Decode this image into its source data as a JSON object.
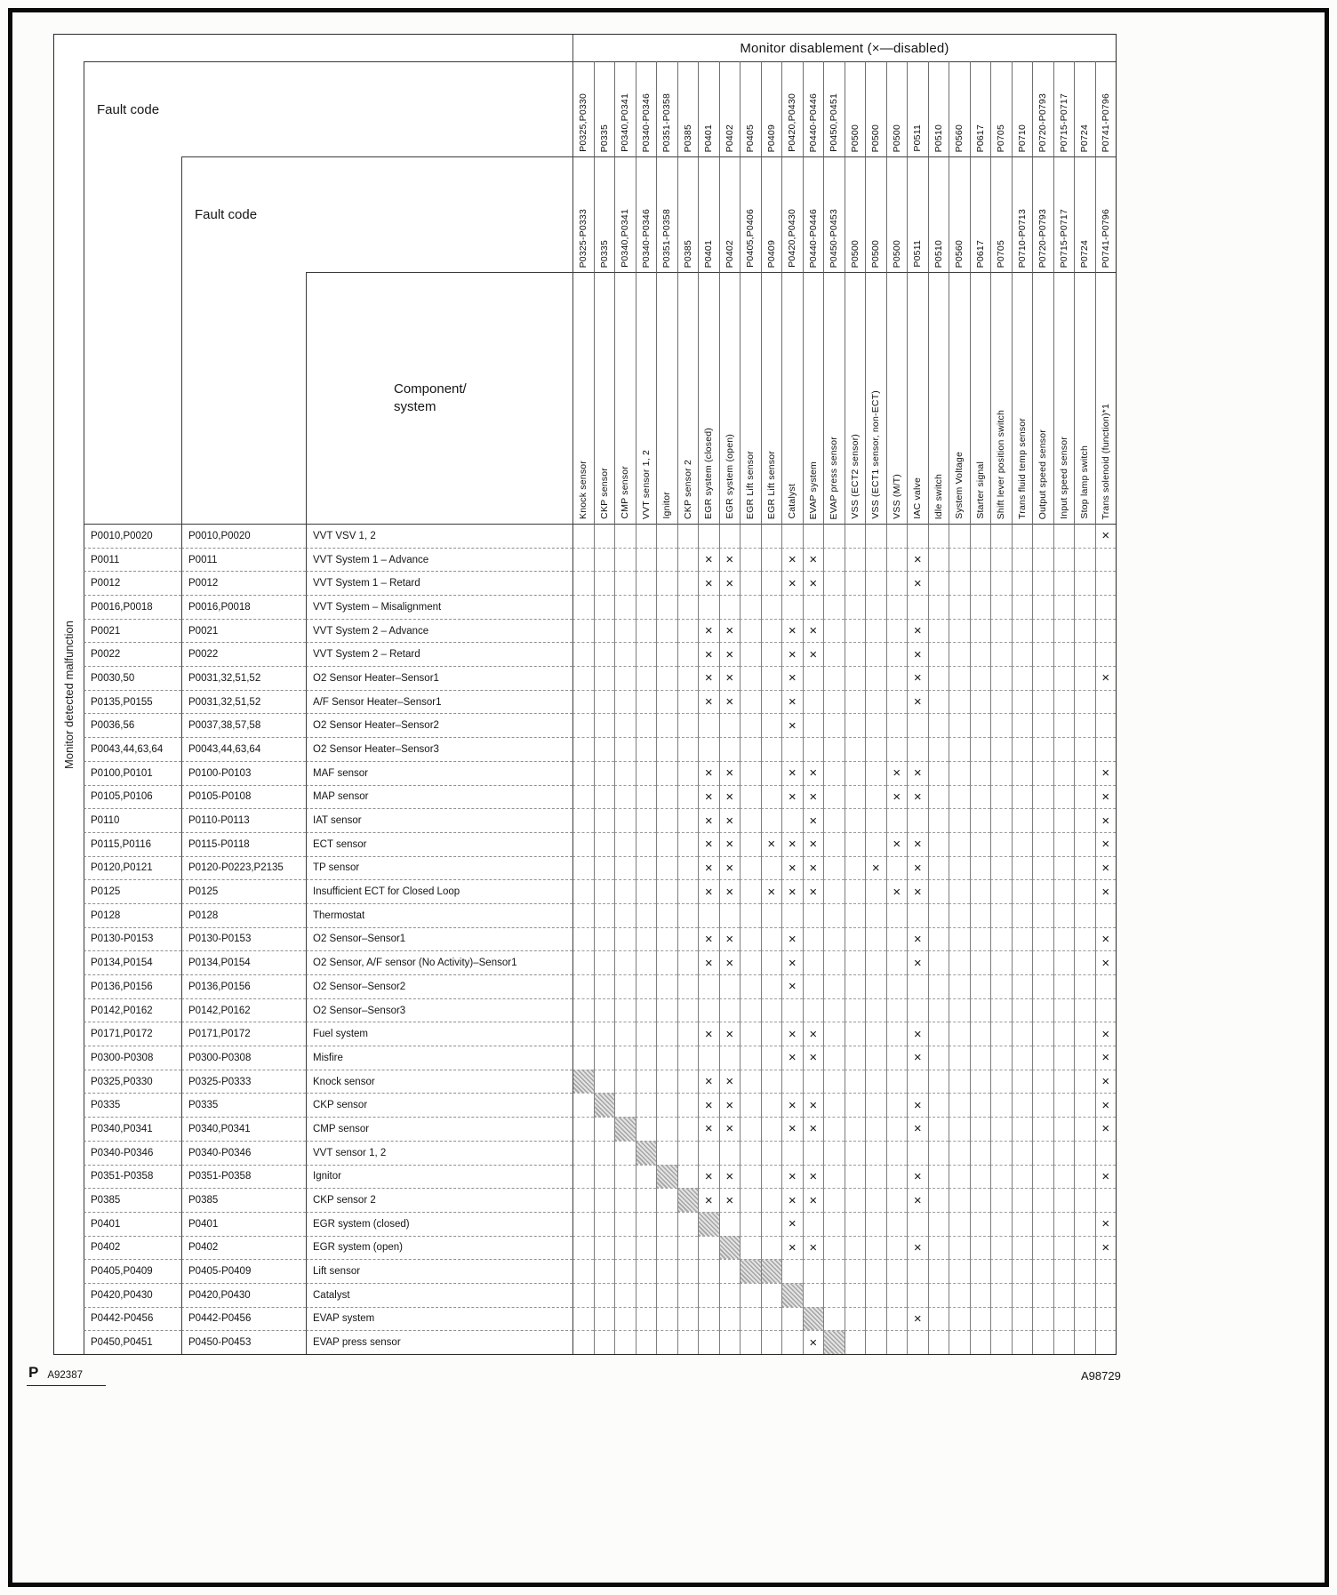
{
  "page": {
    "corner_label": "P",
    "figure_left": "A92387",
    "figure_right": "A98729"
  },
  "header": {
    "title": "Monitor disablement (×—disabled)",
    "fault_code_1": "Fault code",
    "fault_code_2": "Fault code",
    "component_system": "Component/\nsystem",
    "left_label": "Monitor detected malfunction"
  },
  "glyphs": {
    "disabled_mark": "×"
  },
  "columns": [
    {
      "code1": "P0325,P0330",
      "code2": "P0325-P0333",
      "component": "Knock sensor"
    },
    {
      "code1": "P0335",
      "code2": "P0335",
      "component": "CKP sensor"
    },
    {
      "code1": "P0340,P0341",
      "code2": "P0340,P0341",
      "component": "CMP sensor"
    },
    {
      "code1": "P0340-P0346",
      "code2": "P0340-P0346",
      "component": "VVT sensor 1, 2"
    },
    {
      "code1": "P0351-P0358",
      "code2": "P0351-P0358",
      "component": "Ignitor"
    },
    {
      "code1": "P0385",
      "code2": "P0385",
      "component": "CKP sensor 2"
    },
    {
      "code1": "P0401",
      "code2": "P0401",
      "component": "EGR system (closed)"
    },
    {
      "code1": "P0402",
      "code2": "P0402",
      "component": "EGR system (open)"
    },
    {
      "code1": "P0405",
      "code2": "P0405,P0406",
      "component": "EGR Lift sensor"
    },
    {
      "code1": "P0409",
      "code2": "P0409",
      "component": "EGR Lift sensor"
    },
    {
      "code1": "P0420,P0430",
      "code2": "P0420,P0430",
      "component": "Catalyst"
    },
    {
      "code1": "P0440-P0446",
      "code2": "P0440-P0446",
      "component": "EVAP system"
    },
    {
      "code1": "P0450,P0451",
      "code2": "P0450-P0453",
      "component": "EVAP press sensor"
    },
    {
      "code1": "P0500",
      "code2": "P0500",
      "component": "VSS (ECT2 sensor)"
    },
    {
      "code1": "P0500",
      "code2": "P0500",
      "component": "VSS (ECT1 sensor, non-ECT)"
    },
    {
      "code1": "P0500",
      "code2": "P0500",
      "component": "VSS (M/T)"
    },
    {
      "code1": "P0511",
      "code2": "P0511",
      "component": "IAC valve"
    },
    {
      "code1": "P0510",
      "code2": "P0510",
      "component": "Idle switch"
    },
    {
      "code1": "P0560",
      "code2": "P0560",
      "component": "System Voltage"
    },
    {
      "code1": "P0617",
      "code2": "P0617",
      "component": "Starter signal"
    },
    {
      "code1": "P0705",
      "code2": "P0705",
      "component": "Shift lever position switch"
    },
    {
      "code1": "P0710",
      "code2": "P0710-P0713",
      "component": "Trans fluid temp sensor"
    },
    {
      "code1": "P0720-P0793",
      "code2": "P0720-P0793",
      "component": "Output speed sensor"
    },
    {
      "code1": "P0715-P0717",
      "code2": "P0715-P0717",
      "component": "Input speed sensor"
    },
    {
      "code1": "P0724",
      "code2": "P0724",
      "component": "Stop lamp switch"
    },
    {
      "code1": "P0741-P0796",
      "code2": "P0741-P0796",
      "component": "Trans solenoid (function)*1"
    }
  ],
  "rows": [
    {
      "code1": "P0010,P0020",
      "code2": "P0010,P0020",
      "component": "VVT VSV 1, 2",
      "x": [
        26
      ],
      "shaded": []
    },
    {
      "code1": "P0011",
      "code2": "P0011",
      "component": "VVT System 1 – Advance",
      "x": [
        7,
        8,
        11,
        12,
        17
      ],
      "shaded": []
    },
    {
      "code1": "P0012",
      "code2": "P0012",
      "component": "VVT System 1 – Retard",
      "x": [
        7,
        8,
        11,
        12,
        17
      ],
      "shaded": []
    },
    {
      "code1": "P0016,P0018",
      "code2": "P0016,P0018",
      "component": "VVT System – Misalignment",
      "x": [],
      "shaded": []
    },
    {
      "code1": "P0021",
      "code2": "P0021",
      "component": "VVT System 2 – Advance",
      "x": [
        7,
        8,
        11,
        12,
        17
      ],
      "shaded": []
    },
    {
      "code1": "P0022",
      "code2": "P0022",
      "component": "VVT System 2 – Retard",
      "x": [
        7,
        8,
        11,
        12,
        17
      ],
      "shaded": []
    },
    {
      "code1": "P0030,50",
      "code2": "P0031,32,51,52",
      "component": "O2 Sensor Heater–Sensor1",
      "x": [
        7,
        8,
        11,
        17,
        26
      ],
      "shaded": []
    },
    {
      "code1": "P0135,P0155",
      "code2": "P0031,32,51,52",
      "component": "A/F Sensor Heater–Sensor1",
      "x": [
        7,
        8,
        11,
        17
      ],
      "shaded": []
    },
    {
      "code1": "P0036,56",
      "code2": "P0037,38,57,58",
      "component": "O2 Sensor Heater–Sensor2",
      "x": [
        11
      ],
      "shaded": []
    },
    {
      "code1": "P0043,44,63,64",
      "code2": "P0043,44,63,64",
      "component": "O2 Sensor Heater–Sensor3",
      "x": [],
      "shaded": []
    },
    {
      "code1": "P0100,P0101",
      "code2": "P0100-P0103",
      "component": "MAF sensor",
      "x": [
        7,
        8,
        11,
        12,
        16,
        17,
        26
      ],
      "shaded": []
    },
    {
      "code1": "P0105,P0106",
      "code2": "P0105-P0108",
      "component": "MAP sensor",
      "x": [
        7,
        8,
        11,
        12,
        16,
        17,
        26
      ],
      "shaded": []
    },
    {
      "code1": "P0110",
      "code2": "P0110-P0113",
      "component": "IAT sensor",
      "x": [
        7,
        8,
        12,
        26
      ],
      "shaded": []
    },
    {
      "code1": "P0115,P0116",
      "code2": "P0115-P0118",
      "component": "ECT sensor",
      "x": [
        7,
        8,
        10,
        11,
        12,
        16,
        17,
        26
      ],
      "shaded": []
    },
    {
      "code1": "P0120,P0121",
      "code2": "P0120-P0223,P2135",
      "component": "TP sensor",
      "x": [
        7,
        8,
        11,
        12,
        15,
        17,
        26
      ],
      "shaded": []
    },
    {
      "code1": "P0125",
      "code2": "P0125",
      "component": "Insufficient ECT for Closed Loop",
      "x": [
        7,
        8,
        10,
        11,
        12,
        16,
        17,
        26
      ],
      "shaded": []
    },
    {
      "code1": "P0128",
      "code2": "P0128",
      "component": "Thermostat",
      "x": [],
      "shaded": []
    },
    {
      "code1": "P0130-P0153",
      "code2": "P0130-P0153",
      "component": "O2 Sensor–Sensor1",
      "x": [
        7,
        8,
        11,
        17,
        26
      ],
      "shaded": []
    },
    {
      "code1": "P0134,P0154",
      "code2": "P0134,P0154",
      "component": "O2 Sensor, A/F sensor (No Activity)–Sensor1",
      "x": [
        7,
        8,
        11,
        17,
        26
      ],
      "shaded": []
    },
    {
      "code1": "P0136,P0156",
      "code2": "P0136,P0156",
      "component": "O2 Sensor–Sensor2",
      "x": [
        11
      ],
      "shaded": []
    },
    {
      "code1": "P0142,P0162",
      "code2": "P0142,P0162",
      "component": "O2 Sensor–Sensor3",
      "x": [],
      "shaded": []
    },
    {
      "code1": "P0171,P0172",
      "code2": "P0171,P0172",
      "component": "Fuel system",
      "x": [
        7,
        8,
        11,
        12,
        17,
        26
      ],
      "shaded": []
    },
    {
      "code1": "P0300-P0308",
      "code2": "P0300-P0308",
      "component": "Misfire",
      "x": [
        11,
        12,
        17,
        26
      ],
      "shaded": []
    },
    {
      "code1": "P0325,P0330",
      "code2": "P0325-P0333",
      "component": "Knock sensor",
      "x": [
        7,
        8,
        26
      ],
      "shaded": [
        1
      ]
    },
    {
      "code1": "P0335",
      "code2": "P0335",
      "component": "CKP sensor",
      "x": [
        7,
        8,
        11,
        12,
        17,
        26
      ],
      "shaded": [
        2
      ]
    },
    {
      "code1": "P0340,P0341",
      "code2": "P0340,P0341",
      "component": "CMP sensor",
      "x": [
        7,
        8,
        11,
        12,
        17,
        26
      ],
      "shaded": [
        3
      ]
    },
    {
      "code1": "P0340-P0346",
      "code2": "P0340-P0346",
      "component": "VVT sensor 1, 2",
      "x": [],
      "shaded": [
        4
      ]
    },
    {
      "code1": "P0351-P0358",
      "code2": "P0351-P0358",
      "component": "Ignitor",
      "x": [
        7,
        8,
        11,
        12,
        17,
        26
      ],
      "shaded": [
        5
      ]
    },
    {
      "code1": "P0385",
      "code2": "P0385",
      "component": "CKP sensor 2",
      "x": [
        7,
        8,
        11,
        12,
        17
      ],
      "shaded": [
        6
      ]
    },
    {
      "code1": "P0401",
      "code2": "P0401",
      "component": "EGR system (closed)",
      "x": [
        11,
        26
      ],
      "shaded": [
        7
      ]
    },
    {
      "code1": "P0402",
      "code2": "P0402",
      "component": "EGR system (open)",
      "x": [
        11,
        12,
        17,
        26
      ],
      "shaded": [
        8
      ]
    },
    {
      "code1": "P0405,P0409",
      "code2": "P0405-P0409",
      "component": "Lift sensor",
      "x": [],
      "shaded": [
        9,
        10
      ]
    },
    {
      "code1": "P0420,P0430",
      "code2": "P0420,P0430",
      "component": "Catalyst",
      "x": [],
      "shaded": [
        11
      ]
    },
    {
      "code1": "P0442-P0456",
      "code2": "P0442-P0456",
      "component": "EVAP system",
      "x": [
        17
      ],
      "shaded": [
        12
      ]
    },
    {
      "code1": "P0450,P0451",
      "code2": "P0450-P0453",
      "component": "EVAP press sensor",
      "x": [
        12
      ],
      "shaded": [
        13
      ]
    }
  ]
}
